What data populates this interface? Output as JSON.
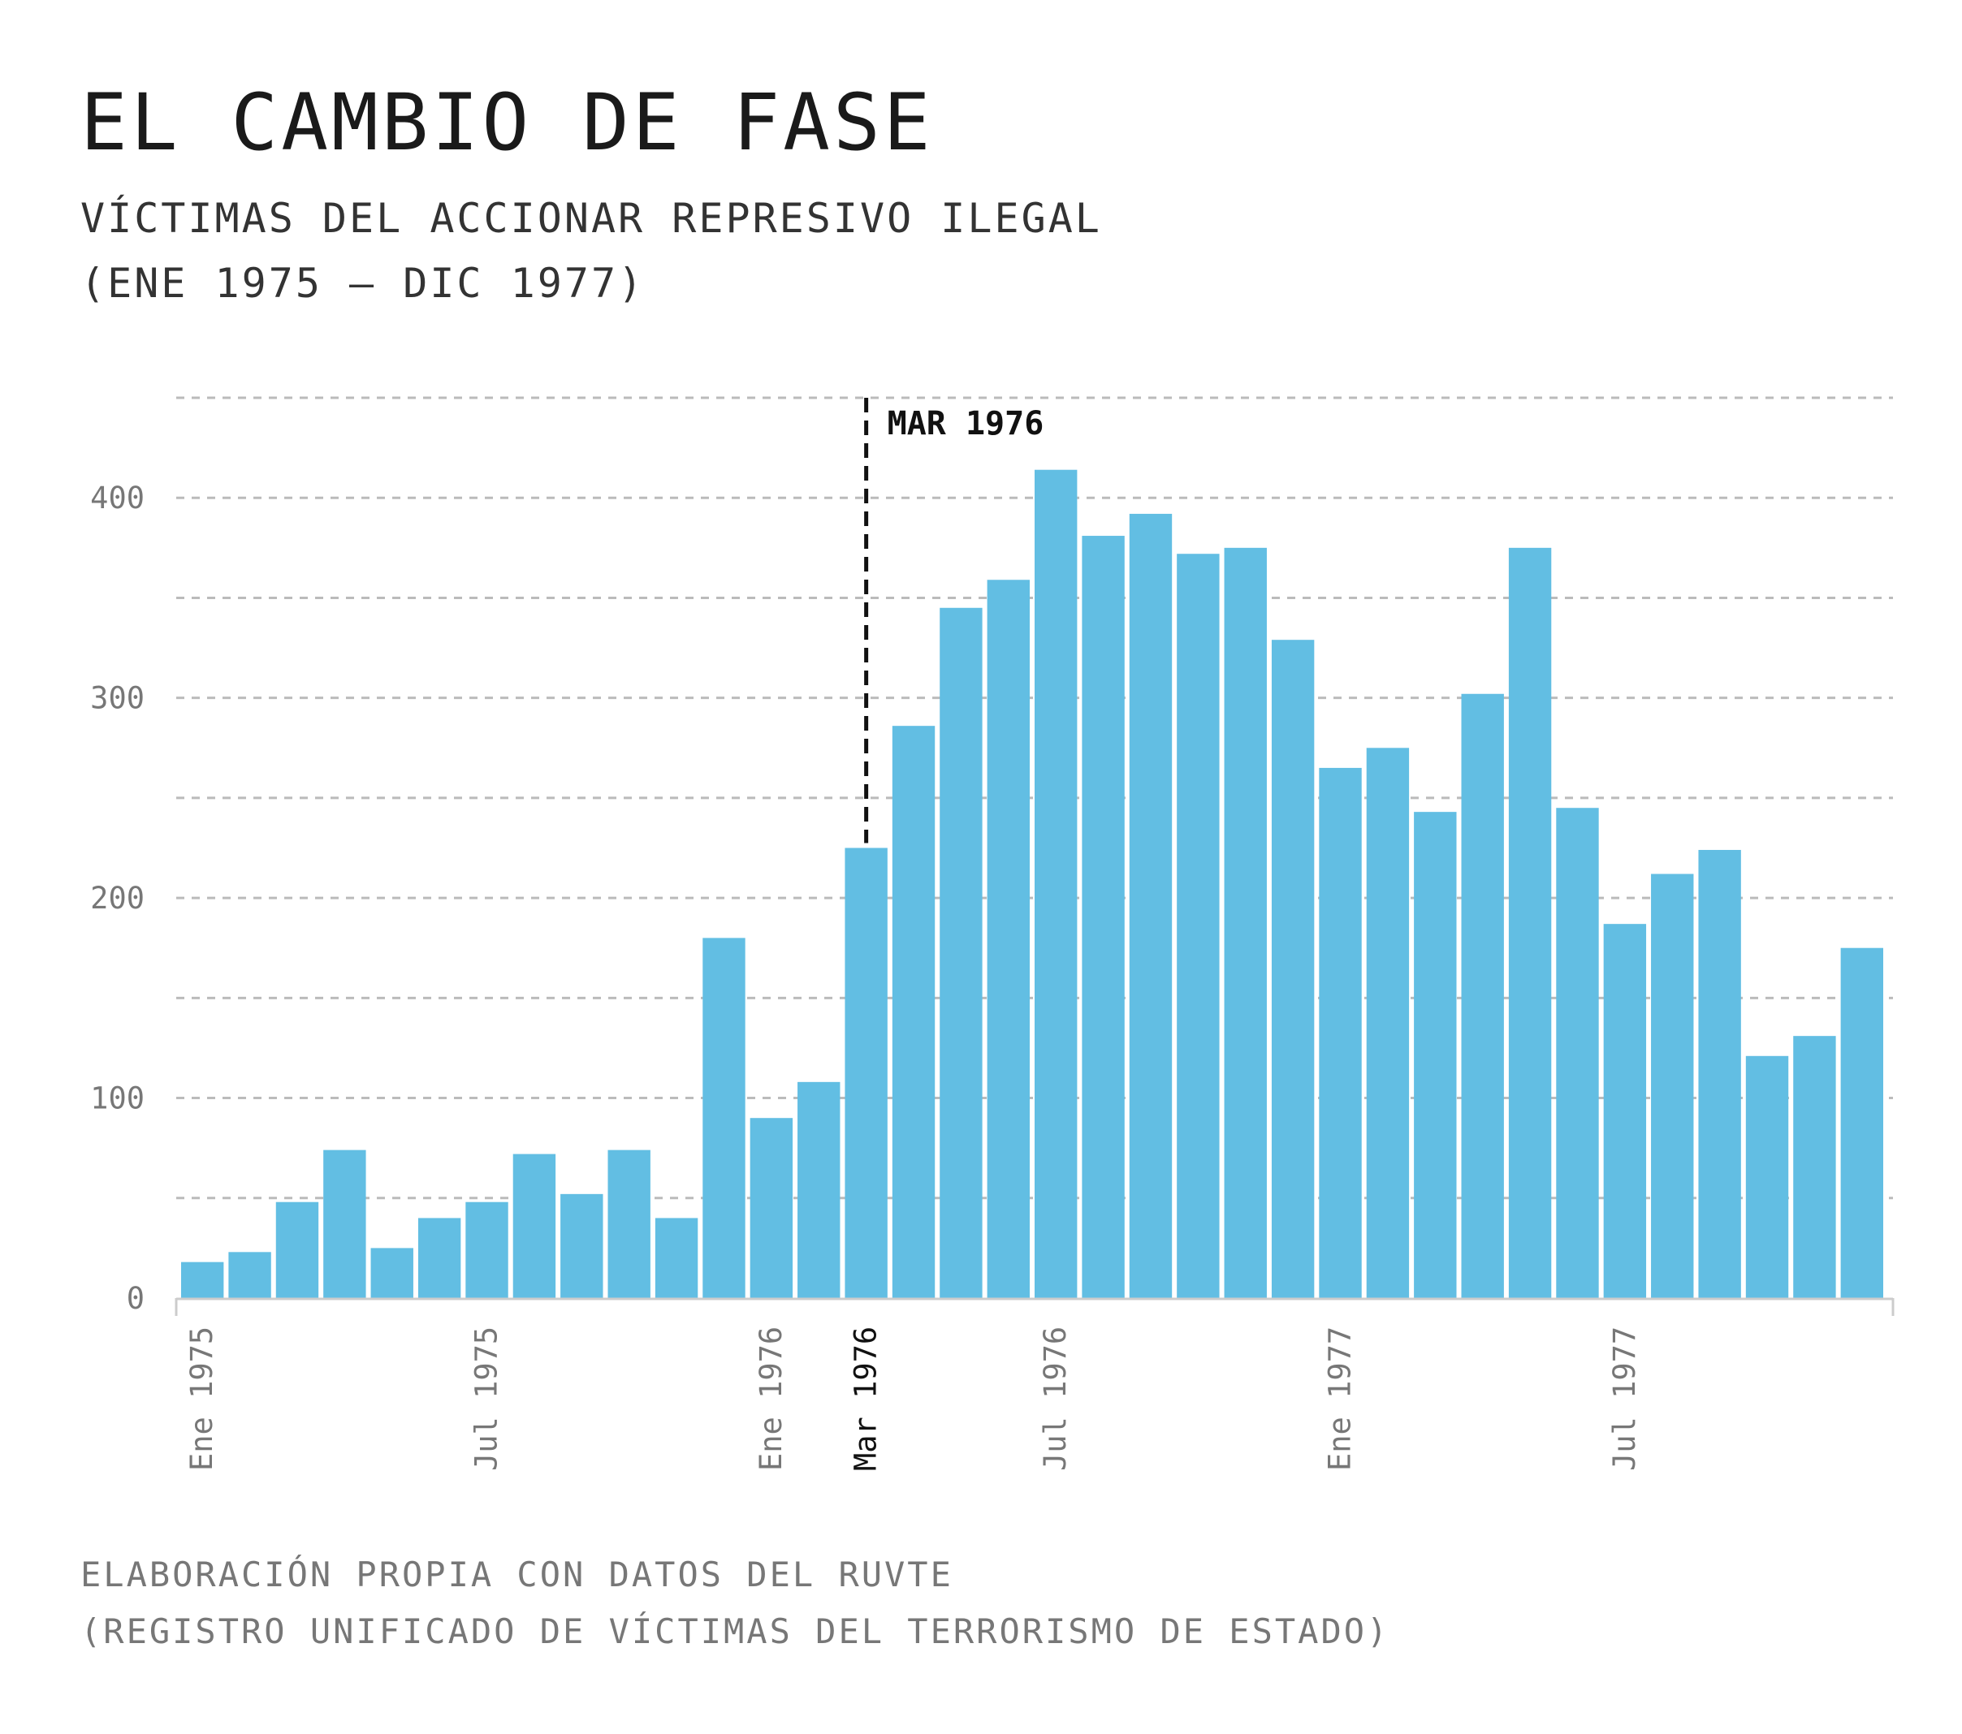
{
  "title": "EL CAMBIO DE FASE",
  "subtitle_line1": "VÍCTIMAS DEL ACCIONAR REPRESIVO ILEGAL",
  "subtitle_line2": "(ENE 1975 – DIC 1977)",
  "footer_line1": "ELABORACIÓN PROPIA CON DATOS DEL RUVTE",
  "footer_line2": "(REGISTRO UNIFICADO DE VÍCTIMAS DEL TERRORISMO DE ESTADO)",
  "chart_data": {
    "type": "bar",
    "title": "EL CAMBIO DE FASE",
    "xlabel": "",
    "ylabel": "",
    "ylim": [
      0,
      450
    ],
    "grid": true,
    "bar_color": "#62bee3",
    "yticks": [
      0,
      100,
      200,
      300,
      400
    ],
    "xticks": [
      {
        "index": 0,
        "label": "Ene 1975"
      },
      {
        "index": 6,
        "label": "Jul 1975"
      },
      {
        "index": 12,
        "label": "Ene 1976"
      },
      {
        "index": 14,
        "label": "Mar 1976",
        "highlight": true
      },
      {
        "index": 18,
        "label": "Jul 1976"
      },
      {
        "index": 24,
        "label": "Ene 1977"
      },
      {
        "index": 30,
        "label": "Jul 1977"
      }
    ],
    "annotation": {
      "index": 14,
      "label": "MAR 1976"
    },
    "values": [
      18,
      23,
      48,
      74,
      25,
      40,
      48,
      72,
      52,
      74,
      40,
      180,
      90,
      108,
      225,
      286,
      345,
      359,
      414,
      381,
      392,
      372,
      375,
      329,
      265,
      275,
      243,
      302,
      375,
      245,
      187,
      212,
      224,
      121,
      131,
      175
    ]
  }
}
